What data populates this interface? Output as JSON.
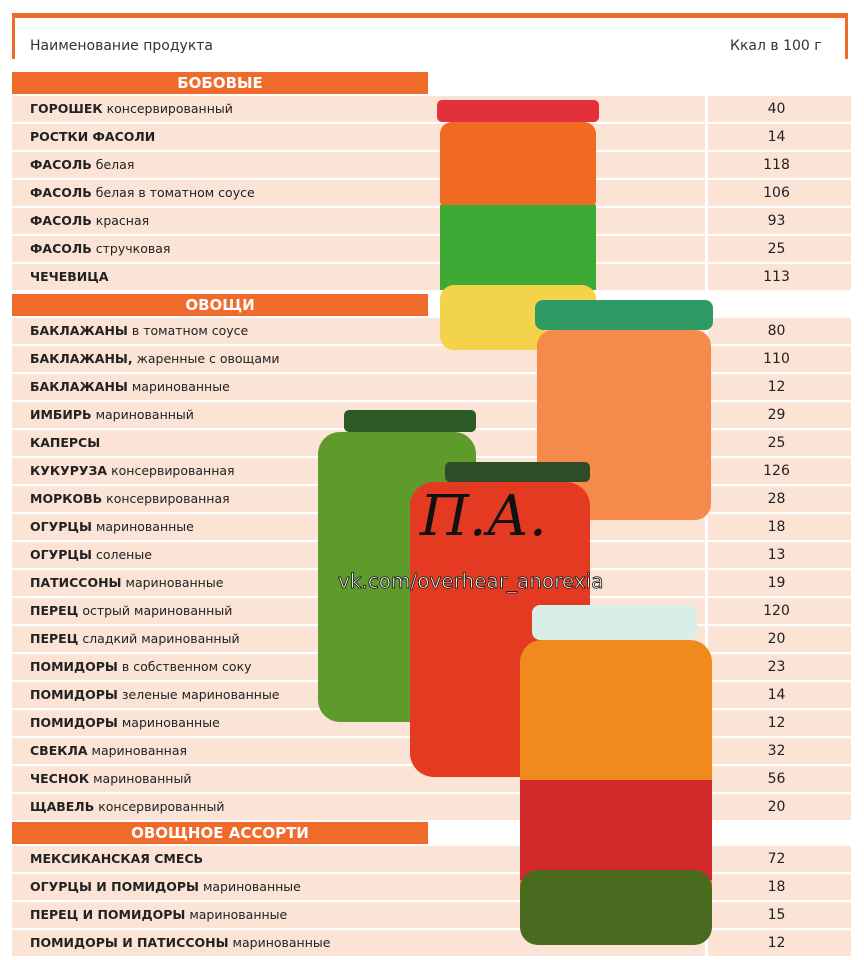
{
  "header": {
    "name": "Наименование продукта",
    "kcal": "Ккал в 100 г"
  },
  "sections": [
    {
      "title": "БОБОВЫЕ",
      "rows": [
        {
          "bold": "ГОРОШЕК",
          "rest": "консервированный",
          "kcal": 40
        },
        {
          "bold": "РОСТКИ ФАСОЛИ",
          "kcal": 14
        },
        {
          "bold": "ФАСОЛЬ",
          "rest": "белая",
          "kcal": 118
        },
        {
          "bold": "ФАСОЛЬ",
          "rest": "белая в томатном соусе",
          "kcal": 106
        },
        {
          "bold": "ФАСОЛЬ",
          "rest": "красная",
          "kcal": 93
        },
        {
          "bold": "ФАСОЛЬ",
          "rest": "стручковая",
          "kcal": 25
        },
        {
          "bold": "ЧЕЧЕВИЦА",
          "kcal": 113
        }
      ]
    },
    {
      "title": "ОВОЩИ",
      "rows": [
        {
          "bold": "БАКЛАЖАНЫ",
          "rest": "в томатном соусе",
          "kcal": 80
        },
        {
          "bold": "БАКЛАЖАНЫ,",
          "rest": "жаренные с овощами",
          "kcal": 110
        },
        {
          "bold": "БАКЛАЖАНЫ",
          "rest": "маринованные",
          "kcal": 12
        },
        {
          "bold": "ИМБИРЬ",
          "rest": "маринованный",
          "kcal": 29
        },
        {
          "bold": "КАПЕРСЫ",
          "kcal": 25
        },
        {
          "bold": "КУКУРУЗА",
          "rest": "консервированная",
          "kcal": 126
        },
        {
          "bold": "МОРКОВЬ",
          "rest": "консервированная",
          "kcal": 28
        },
        {
          "bold": "ОГУРЦЫ",
          "rest": "маринованные",
          "kcal": 18
        },
        {
          "bold": "ОГУРЦЫ",
          "rest": "соленые",
          "kcal": 13
        },
        {
          "bold": "ПАТИССОНЫ",
          "rest": "маринованные",
          "kcal": 19
        },
        {
          "bold": "ПЕРЕЦ",
          "rest": "острый маринованный",
          "kcal": 120
        },
        {
          "bold": "ПЕРЕЦ",
          "rest": "сладкий маринованный",
          "kcal": 20
        },
        {
          "bold": "ПОМИДОРЫ",
          "rest": "в собственном соку",
          "kcal": 23
        },
        {
          "bold": "ПОМИДОРЫ",
          "rest": "зеленые маринованные",
          "kcal": 14
        },
        {
          "bold": "ПОМИДОРЫ",
          "rest": "маринованные",
          "kcal": 12
        },
        {
          "bold": "СВЕКЛА",
          "rest": "маринованная",
          "kcal": 32
        },
        {
          "bold": "ЧЕСНОК",
          "rest": "маринованный",
          "kcal": 56
        },
        {
          "bold": "ЩАВЕЛЬ",
          "rest": "консервированный",
          "kcal": 20
        }
      ]
    },
    {
      "title": "ОВОЩНОЕ АССОРТИ",
      "rows": [
        {
          "bold": "МЕКСИКАНСКАЯ СМЕСЬ",
          "kcal": 72
        },
        {
          "bold": "ОГУРЦЫ И ПОМИДОРЫ",
          "rest": "маринованные",
          "kcal": 18
        },
        {
          "bold": "ПЕРЕЦ И ПОМИДОРЫ",
          "rest": "маринованные",
          "kcal": 15
        },
        {
          "bold": "ПОМИДОРЫ И ПАТИССОНЫ",
          "rest": "маринованные",
          "kcal": 12
        }
      ]
    }
  ],
  "watermark": {
    "logo": "П.А.",
    "url": "vk.com/overhear_anorexia"
  }
}
